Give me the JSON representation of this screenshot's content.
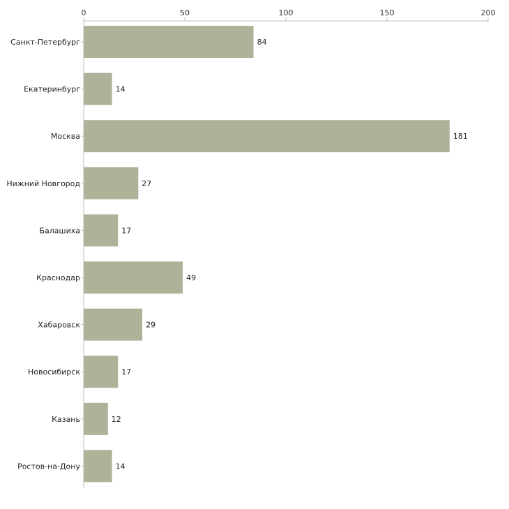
{
  "chart_data": {
    "type": "bar",
    "orientation": "horizontal",
    "title": "",
    "xlabel": "",
    "ylabel": "",
    "xlim": [
      0,
      200
    ],
    "ticks": [
      0,
      50,
      100,
      150,
      200
    ],
    "tick_position": "top",
    "grid": false,
    "legend": "none",
    "bar_color": "#adb299",
    "categories": [
      "Санкт-Петербург",
      "Екатеринбург",
      "Москва",
      "Нижний Новгород",
      "Балашиха",
      "Краснодар",
      "Хабаровск",
      "Новосибирск",
      "Казань",
      "Ростов-на-Дону"
    ],
    "values": [
      84,
      14,
      181,
      27,
      17,
      49,
      29,
      17,
      12,
      14
    ]
  }
}
